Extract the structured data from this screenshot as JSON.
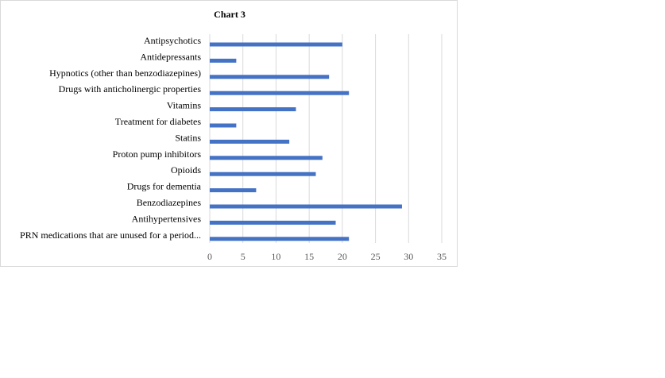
{
  "chart_data": {
    "type": "bar",
    "orientation": "horizontal",
    "title": "Chart 3",
    "categories": [
      "Antipsychotics",
      "Antidepressants",
      "Hypnotics (other than benzodiazepines)",
      "Drugs with anticholinergic properties",
      "Vitamins",
      "Treatment for diabetes",
      "Statins",
      "Proton pump inhibitors",
      "Opioids",
      "Drugs for dementia",
      "Benzodiazepines",
      "Antihypertensives",
      "PRN medications that are unused for a period..."
    ],
    "values": [
      20,
      4,
      18,
      21,
      13,
      4,
      12,
      17,
      16,
      7,
      29,
      19,
      21
    ],
    "xlim": [
      0,
      35
    ],
    "ticks": [
      "0",
      "5",
      "10",
      "15",
      "20",
      "25",
      "30",
      "35"
    ],
    "grid": true,
    "bar_color": "#4472C4",
    "grid_color": "#d9d9d9"
  }
}
